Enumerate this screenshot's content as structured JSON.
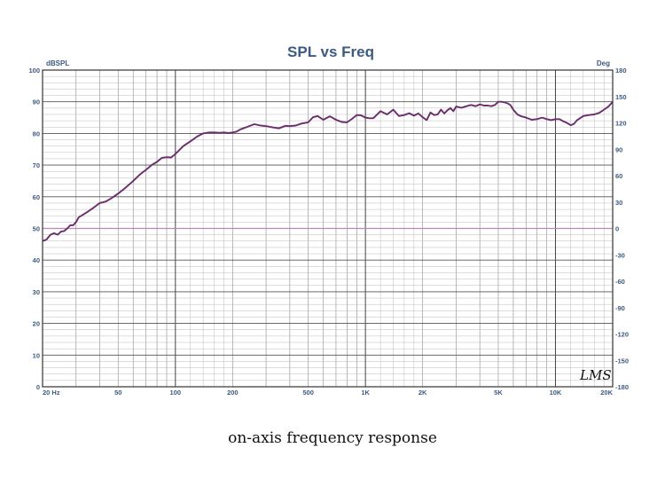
{
  "chart_data": {
    "type": "line",
    "title": "SPL vs Freq",
    "y_unit_left": "dBSPL",
    "y_unit_right": "Deg",
    "xscale": "log",
    "xlim": [
      20,
      20000
    ],
    "ylim": [
      0,
      100
    ],
    "y2lim": [
      -180,
      180
    ],
    "grid": true,
    "x_tick_labels": [
      {
        "value": 20,
        "label": "20 Hz"
      },
      {
        "value": 50,
        "label": "50"
      },
      {
        "value": 100,
        "label": "100"
      },
      {
        "value": 200,
        "label": "200"
      },
      {
        "value": 500,
        "label": "500"
      },
      {
        "value": 1000,
        "label": "1K"
      },
      {
        "value": 2000,
        "label": "2K"
      },
      {
        "value": 5000,
        "label": "5K"
      },
      {
        "value": 10000,
        "label": "10K"
      },
      {
        "value": 20000,
        "label": "20K"
      }
    ],
    "y_ticks": [
      0,
      10,
      20,
      30,
      40,
      50,
      60,
      70,
      80,
      90,
      100
    ],
    "y2_ticks": [
      -180,
      -150,
      -120,
      -90,
      -60,
      -30,
      0,
      30,
      60,
      90,
      120,
      150,
      180
    ],
    "series": [
      {
        "color": "#6b2d6b",
        "x": [
          20,
          21,
          22,
          23,
          24,
          25,
          26,
          27,
          28,
          29,
          30,
          31,
          33,
          35,
          37,
          40,
          43,
          46,
          50,
          55,
          60,
          65,
          70,
          75,
          80,
          85,
          90,
          95,
          100,
          110,
          120,
          130,
          140,
          150,
          160,
          170,
          180,
          190,
          200,
          210,
          220,
          240,
          260,
          280,
          300,
          320,
          350,
          380,
          400,
          430,
          460,
          500,
          530,
          560,
          600,
          650,
          700,
          750,
          800,
          850,
          900,
          950,
          1000,
          1050,
          1100,
          1200,
          1300,
          1400,
          1500,
          1600,
          1700,
          1800,
          1900,
          2000,
          2100,
          2200,
          2300,
          2400,
          2500,
          2600,
          2700,
          2800,
          2900,
          3000,
          3200,
          3400,
          3600,
          3800,
          4000,
          4200,
          4400,
          4600,
          4800,
          5000,
          5200,
          5400,
          5600,
          5800,
          6000,
          6300,
          6600,
          7000,
          7500,
          8000,
          8500,
          9000,
          9500,
          10000,
          10500,
          11000,
          11500,
          12000,
          12500,
          13000,
          14000,
          15000,
          16000,
          17000,
          18000,
          19000,
          20000
        ],
        "y": [
          46,
          46.5,
          48,
          48.5,
          48,
          49,
          49.2,
          50,
          51,
          51,
          52,
          53.5,
          54.5,
          55.5,
          56.5,
          58,
          58.5,
          59.5,
          61,
          63,
          65,
          67,
          68.5,
          70,
          71,
          72.3,
          72.5,
          72.4,
          73.5,
          76,
          77.5,
          79,
          80,
          80.3,
          80.3,
          80.2,
          80.3,
          80.1,
          80.3,
          80.6,
          81.3,
          82.1,
          82.9,
          82.5,
          82.3,
          82.0,
          81.6,
          82.4,
          82.3,
          82.5,
          83.1,
          83.5,
          85.1,
          85.5,
          84.3,
          85.4,
          84.3,
          83.6,
          83.5,
          84.6,
          85.8,
          85.7,
          85.0,
          84.8,
          84.8,
          87.0,
          86.0,
          87.5,
          85.5,
          85.8,
          86.4,
          85.6,
          86.3,
          85.1,
          84.2,
          86.6,
          85.8,
          86.0,
          87.5,
          86.3,
          87.3,
          88.0,
          87.0,
          88.5,
          88.1,
          88.6,
          89.0,
          88.6,
          89.2,
          88.8,
          88.8,
          88.6,
          89.0,
          90.0,
          90.0,
          89.8,
          89.5,
          88.9,
          87.5,
          86.0,
          85.4,
          85.0,
          84.3,
          84.5,
          85.0,
          84.5,
          84.2,
          84.5,
          84.5,
          83.8,
          83.3,
          82.6,
          83.0,
          84.2,
          85.5,
          85.8,
          86.0,
          86.5,
          87.5,
          88.5,
          90.0
        ]
      }
    ],
    "reference_line": {
      "y": 50,
      "color": "#b88ab8"
    }
  },
  "logo_text": "LMS",
  "caption": "on-axis frequency response"
}
